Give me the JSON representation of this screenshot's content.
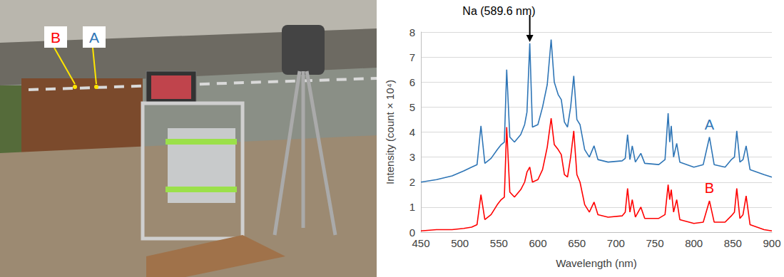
{
  "chart_data": {
    "type": "line",
    "xlabel": "Wavelength (nm)",
    "ylabel": "Intensity (count × 10⁴)",
    "x": [
      450,
      470,
      490,
      505,
      515,
      522,
      527,
      532,
      540,
      548,
      553,
      557,
      560,
      564,
      570,
      578,
      583,
      586,
      589.6,
      593,
      600,
      606,
      612,
      617,
      621,
      626,
      630,
      634,
      638,
      642,
      646,
      650,
      654,
      660,
      666,
      672,
      677,
      690,
      708,
      712,
      715,
      718,
      721,
      725,
      732,
      737,
      755,
      763,
      767,
      769,
      771,
      774,
      778,
      782,
      800,
      812,
      820,
      826,
      840,
      848,
      852,
      855,
      859,
      863,
      867,
      872,
      890,
      900
    ],
    "series": [
      {
        "name": "A",
        "color": "#2e75b6",
        "values": [
          2.0,
          2.1,
          2.25,
          2.45,
          2.6,
          2.7,
          4.25,
          2.75,
          2.95,
          3.3,
          3.5,
          3.6,
          6.5,
          3.8,
          3.6,
          3.9,
          4.3,
          4.8,
          7.55,
          4.2,
          4.3,
          5.0,
          5.9,
          7.7,
          6.0,
          5.5,
          5.3,
          4.4,
          4.2,
          5.0,
          6.25,
          4.5,
          4.3,
          3.3,
          3.0,
          3.45,
          2.9,
          2.8,
          2.85,
          2.95,
          3.9,
          2.9,
          3.45,
          2.8,
          3.15,
          2.75,
          2.7,
          2.9,
          4.75,
          3.6,
          4.25,
          3.0,
          3.55,
          2.8,
          2.6,
          2.7,
          3.8,
          2.7,
          2.6,
          2.9,
          3.0,
          4.05,
          2.8,
          2.9,
          3.45,
          2.5,
          2.3,
          2.2
        ]
      },
      {
        "name": "B",
        "color": "#ff0000",
        "values": [
          0.05,
          0.1,
          0.1,
          0.15,
          0.2,
          0.3,
          1.5,
          0.5,
          0.7,
          1.1,
          1.3,
          1.4,
          4.2,
          1.6,
          1.4,
          1.7,
          2.0,
          2.4,
          2.6,
          2.0,
          2.1,
          2.5,
          3.4,
          4.55,
          3.5,
          3.3,
          3.1,
          2.3,
          2.2,
          3.0,
          4.05,
          2.3,
          2.0,
          1.1,
          0.8,
          1.2,
          0.7,
          0.6,
          0.65,
          0.8,
          1.75,
          0.8,
          1.3,
          0.6,
          1.0,
          0.55,
          0.55,
          0.7,
          1.9,
          1.3,
          1.7,
          0.8,
          1.3,
          0.5,
          0.35,
          0.4,
          1.25,
          0.4,
          0.4,
          0.65,
          0.8,
          1.75,
          0.55,
          0.7,
          1.45,
          0.3,
          0.1,
          0.05
        ]
      }
    ],
    "xlim": [
      450,
      900
    ],
    "xticks": [
      450,
      500,
      550,
      600,
      650,
      700,
      750,
      800,
      850,
      900
    ],
    "ylim": [
      0,
      8
    ],
    "yticks": [
      0,
      1,
      2,
      3,
      4,
      5,
      6,
      7,
      8
    ],
    "grid": true,
    "annotations": [
      {
        "text": "Na (589.6 nm)",
        "x": 589.6
      }
    ]
  },
  "photo": {
    "labels": [
      {
        "text": "B",
        "color": "#ff0000"
      },
      {
        "text": "A",
        "color": "#2e75b6"
      }
    ]
  }
}
